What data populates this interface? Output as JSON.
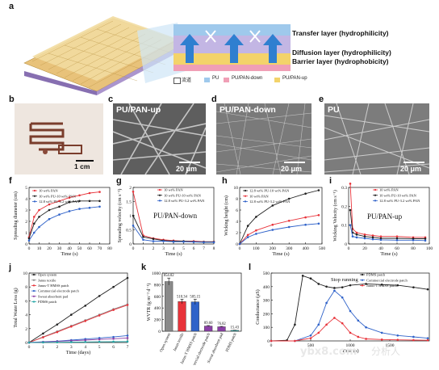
{
  "panels": {
    "a": {
      "label": "a",
      "layers": [
        "Transfer layer (hydrophilicity)",
        "Diffusion layer (hydrophilicity)",
        "Barrier layer (hydrophobicity)"
      ],
      "legend": [
        "流道",
        "PU",
        "PU/PAN-down",
        "PU/PAN-up"
      ]
    },
    "b": {
      "label": "b",
      "scale": "1 cm"
    },
    "c": {
      "label": "c",
      "title": "PU/PAN-up",
      "scale": "20 μm"
    },
    "d": {
      "label": "d",
      "title": "PU/PAN-down",
      "scale": "20 μm"
    },
    "e": {
      "label": "e",
      "title": "PU",
      "scale": "20 μm"
    },
    "f": {
      "label": "f"
    },
    "g": {
      "label": "g",
      "annotation": "PU/PAN-down"
    },
    "h": {
      "label": "h"
    },
    "i": {
      "label": "i",
      "annotation": "PU/PAN-up"
    },
    "j": {
      "label": "j"
    },
    "k": {
      "label": "k"
    },
    "l": {
      "label": "l",
      "annotation": "Stop running"
    }
  },
  "colors": {
    "black": "#222222",
    "red": "#e8333a",
    "blue": "#2f62c9",
    "purple": "#8b3fa6",
    "teal": "#20a4a4",
    "gray": "#8a8a8a"
  },
  "watermark": {
    "site": "ybx8.com",
    "brand": "分析人"
  },
  "chart_data": [
    {
      "id": "f",
      "type": "line",
      "xlabel": "Time (s)",
      "ylabel": "Spreading diameter (cm)",
      "xlim": [
        0,
        80
      ],
      "ylim": [
        0,
        5
      ],
      "xticks": [
        0,
        10,
        20,
        30,
        40,
        50,
        60,
        70,
        80
      ],
      "yticks": [
        0,
        1,
        2,
        3,
        4,
        5
      ],
      "legend": [
        "10 wt% PAN",
        "10 wt% PU-10 wt% PAN",
        "12.8 wt% PU-3.2 wt% PAN"
      ],
      "series": [
        {
          "name": "10 wt% PAN",
          "color": "red",
          "x": [
            0,
            5,
            10,
            20,
            30,
            40,
            50,
            60,
            70
          ],
          "y": [
            0.6,
            2.4,
            3.0,
            3.5,
            3.8,
            4.1,
            4.3,
            4.5,
            4.6
          ]
        },
        {
          "name": "10 wt% PU-10 wt% PAN",
          "color": "black",
          "x": [
            0,
            5,
            10,
            20,
            30,
            40,
            50,
            60,
            70
          ],
          "y": [
            0.5,
            1.8,
            2.4,
            3.0,
            3.3,
            3.7,
            3.8,
            3.8,
            3.8
          ]
        },
        {
          "name": "12.8 wt% PU-3.2 wt% PAN",
          "color": "blue",
          "x": [
            0,
            5,
            10,
            20,
            30,
            40,
            50,
            60,
            70
          ],
          "y": [
            0.3,
            1.0,
            1.5,
            2.2,
            2.6,
            2.9,
            3.1,
            3.2,
            3.3
          ]
        }
      ]
    },
    {
      "id": "g",
      "type": "line",
      "xlabel": "Time (s)",
      "ylabel": "Spreading velocity (cm s⁻¹)",
      "xlim": [
        0,
        8
      ],
      "ylim": [
        0,
        2
      ],
      "xticks": [
        0,
        1,
        2,
        3,
        4,
        5,
        6,
        7,
        8
      ],
      "yticks": [
        0.0,
        0.5,
        1.0,
        1.5,
        2.0
      ],
      "legend": [
        "10 wt% PAN",
        "10 wt% PU-10 wt% PAN",
        "12.8 wt% PU-3.2 wt% PAN"
      ],
      "series": [
        {
          "name": "10 wt% PAN",
          "color": "red",
          "x": [
            0,
            1,
            2,
            3,
            4,
            5,
            6,
            7,
            8
          ],
          "y": [
            1.85,
            0.3,
            0.2,
            0.15,
            0.12,
            0.1,
            0.1,
            0.08,
            0.08
          ]
        },
        {
          "name": "10 wt% PU-10 wt% PAN",
          "color": "black",
          "x": [
            0,
            1,
            2,
            3,
            4,
            5,
            6,
            7,
            8
          ],
          "y": [
            1.0,
            0.25,
            0.18,
            0.12,
            0.1,
            0.1,
            0.08,
            0.07,
            0.07
          ]
        },
        {
          "name": "12.8 wt% PU-3.2 wt% PAN",
          "color": "blue",
          "x": [
            0,
            1,
            2,
            3,
            4,
            5,
            6,
            7,
            8
          ],
          "y": [
            0.65,
            0.15,
            0.1,
            0.1,
            0.08,
            0.08,
            0.07,
            0.06,
            0.06
          ]
        }
      ]
    },
    {
      "id": "h",
      "type": "line",
      "xlabel": "Time (s)",
      "ylabel": "Wicking height (cm)",
      "xlim": [
        0,
        500
      ],
      "ylim": [
        0,
        10
      ],
      "xticks": [
        0,
        100,
        200,
        300,
        400,
        500
      ],
      "yticks": [
        0,
        2,
        4,
        6,
        8,
        10
      ],
      "legend": [
        "12.8 wt% PU-10 wt% PAN",
        "10 wt% PAN",
        "12.8 wt% PU-3.2 wt% PAN"
      ],
      "series": [
        {
          "name": "12.8 wt% PU-10 wt% PAN",
          "color": "black",
          "x": [
            0,
            50,
            100,
            200,
            300,
            400,
            480
          ],
          "y": [
            0,
            3.2,
            4.8,
            6.8,
            8.0,
            8.9,
            9.5
          ]
        },
        {
          "name": "10 wt% PAN",
          "color": "red",
          "x": [
            0,
            50,
            100,
            200,
            300,
            400,
            480
          ],
          "y": [
            0,
            1.6,
            2.4,
            3.4,
            4.1,
            4.7,
            5.1
          ]
        },
        {
          "name": "12.8 wt% PU-3.2 wt% PAN",
          "color": "blue",
          "x": [
            0,
            50,
            100,
            200,
            300,
            400,
            480
          ],
          "y": [
            0,
            1.2,
            1.8,
            2.5,
            3.0,
            3.4,
            3.6
          ]
        }
      ]
    },
    {
      "id": "i",
      "type": "line",
      "xlabel": "Time (s)",
      "ylabel": "Wicking Velocity (cm s⁻¹)",
      "xlim": [
        0,
        100
      ],
      "ylim": [
        0,
        0.3
      ],
      "xticks": [
        0,
        20,
        40,
        60,
        80,
        100
      ],
      "yticks": [
        0.0,
        0.1,
        0.2,
        0.3
      ],
      "legend": [
        "10 wt% PAN",
        "10 wt% PU-10 wt% PAN",
        "12.8 wt% PU-3.2 wt% PAN"
      ],
      "series": [
        {
          "name": "10 wt% PAN",
          "color": "red",
          "x": [
            2,
            5,
            10,
            20,
            30,
            40,
            60,
            80,
            95
          ],
          "y": [
            0.32,
            0.08,
            0.06,
            0.05,
            0.045,
            0.04,
            0.04,
            0.035,
            0.035
          ]
        },
        {
          "name": "10 wt% PU-10 wt% PAN",
          "color": "black",
          "x": [
            2,
            5,
            10,
            20,
            30,
            40,
            60,
            80,
            95
          ],
          "y": [
            0.18,
            0.06,
            0.05,
            0.04,
            0.035,
            0.03,
            0.03,
            0.028,
            0.028
          ]
        },
        {
          "name": "12.8 wt% PU-3.2 wt% PAN",
          "color": "blue",
          "x": [
            2,
            5,
            10,
            20,
            30,
            40,
            60,
            80,
            95
          ],
          "y": [
            0.1,
            0.04,
            0.035,
            0.03,
            0.025,
            0.022,
            0.02,
            0.02,
            0.018
          ]
        }
      ]
    },
    {
      "id": "j",
      "type": "line",
      "xlabel": "Time (days)",
      "ylabel": "Total Water Loss (g)",
      "xlim": [
        0,
        7
      ],
      "ylim": [
        0,
        10
      ],
      "xticks": [
        0,
        1,
        2,
        3,
        4,
        5,
        6,
        7
      ],
      "yticks": [
        0,
        2,
        4,
        6,
        8,
        10
      ],
      "legend": [
        "Open system",
        "Janus textile",
        "Janus-T HMSS patch",
        "Commercial electrode patch",
        "Sweat absorbent pad",
        "PDMS patch"
      ],
      "series": [
        {
          "name": "Open system",
          "color": "black",
          "x": [
            0,
            1,
            2,
            3,
            4,
            5,
            6,
            7
          ],
          "y": [
            0,
            1.3,
            2.6,
            4.0,
            5.3,
            6.7,
            8.0,
            9.3
          ]
        },
        {
          "name": "Janus textile",
          "color": "gray",
          "x": [
            0,
            1,
            2,
            3,
            4,
            5,
            6,
            7
          ],
          "y": [
            0,
            0.8,
            1.6,
            2.4,
            3.2,
            4.0,
            4.8,
            5.5
          ]
        },
        {
          "name": "Janus-T HMSS patch",
          "color": "red",
          "x": [
            0,
            1,
            2,
            3,
            4,
            5,
            6,
            7
          ],
          "y": [
            0,
            0.75,
            1.5,
            2.3,
            3.1,
            3.9,
            4.7,
            5.4
          ]
        },
        {
          "name": "Commercial electrode patch",
          "color": "blue",
          "x": [
            0,
            1,
            2,
            3,
            4,
            5,
            6,
            7
          ],
          "y": [
            0,
            0.1,
            0.2,
            0.35,
            0.5,
            0.65,
            0.8,
            1.0
          ]
        },
        {
          "name": "Sweat absorbent pad",
          "color": "purple",
          "x": [
            0,
            1,
            2,
            3,
            4,
            5,
            6,
            7
          ],
          "y": [
            0,
            0.08,
            0.16,
            0.25,
            0.35,
            0.45,
            0.55,
            0.65
          ]
        },
        {
          "name": "PDMS patch",
          "color": "teal",
          "x": [
            0,
            1,
            2,
            3,
            4,
            5,
            6,
            7
          ],
          "y": [
            0,
            0.02,
            0.04,
            0.06,
            0.08,
            0.1,
            0.12,
            0.14
          ]
        }
      ]
    },
    {
      "id": "k",
      "type": "bar",
      "ylabel": "WVTR (g m⁻² d⁻¹)",
      "ylim": [
        0,
        1000
      ],
      "yticks": [
        0,
        200,
        400,
        600,
        800,
        1000
      ],
      "categories": [
        "Open system",
        "Janus textile",
        "Janus-T HMSS patch",
        "Commercial electrode patch",
        "Sweat absorbent pad",
        "PDMS patch"
      ],
      "values": [
        854.02,
        510.34,
        505.15,
        89.6,
        76.82,
        15.43
      ],
      "labels": [
        "854.02",
        "510.34",
        "505.15",
        "89.60",
        "76.82",
        "15.43"
      ],
      "errors": [
        60,
        40,
        45,
        8,
        6,
        2
      ],
      "colors": [
        "gray",
        "red",
        "blue",
        "purple",
        "purple",
        "teal"
      ]
    },
    {
      "id": "l",
      "type": "line",
      "xlabel": "Time (s)",
      "ylabel": "Conductance (μS)",
      "xlim": [
        0,
        2000
      ],
      "ylim": [
        0,
        500
      ],
      "xticks": [
        0,
        500,
        1000,
        1500
      ],
      "yticks": [
        0,
        100,
        200,
        300,
        400,
        500
      ],
      "legend": [
        "PDMS patch",
        "Commercial electrode patch",
        "Janus-T HMSS patch"
      ],
      "series": [
        {
          "name": "PDMS patch",
          "color": "black",
          "x": [
            0,
            200,
            300,
            400,
            500,
            600,
            700,
            800,
            900,
            1000,
            1200,
            1400,
            1600,
            1800,
            1980
          ],
          "y": [
            0,
            5,
            120,
            480,
            460,
            420,
            400,
            390,
            395,
            410,
            420,
            415,
            410,
            395,
            380
          ]
        },
        {
          "name": "Commercial electrode patch",
          "color": "blue",
          "x": [
            0,
            300,
            500,
            600,
            700,
            800,
            900,
            1000,
            1100,
            1200,
            1400,
            1600,
            1800,
            1980
          ],
          "y": [
            0,
            0,
            40,
            120,
            280,
            370,
            320,
            220,
            150,
            100,
            60,
            40,
            30,
            20
          ]
        },
        {
          "name": "Janus-T HMSS patch",
          "color": "red",
          "x": [
            0,
            300,
            500,
            600,
            700,
            800,
            900,
            1000,
            1100,
            1200,
            1400,
            1600,
            1800,
            1980
          ],
          "y": [
            0,
            0,
            20,
            60,
            120,
            170,
            130,
            60,
            30,
            15,
            10,
            8,
            6,
            5
          ]
        }
      ]
    }
  ]
}
